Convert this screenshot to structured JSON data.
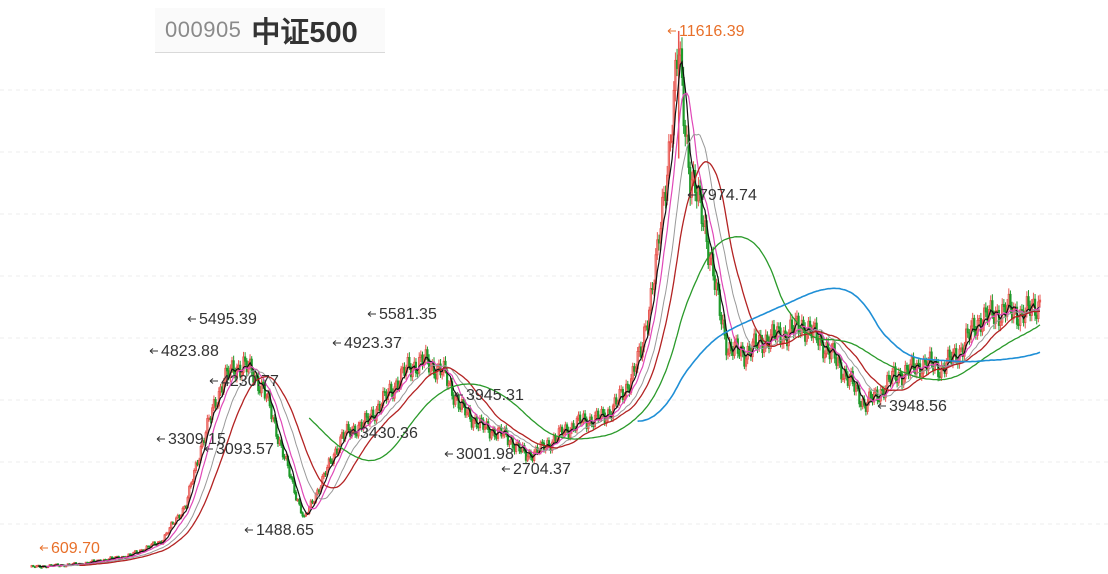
{
  "header": {
    "code": "000905",
    "name": "中证500"
  },
  "chart_data": {
    "type": "candlestick",
    "title": "000905 中证500",
    "xlabel": "",
    "ylabel": "",
    "ylim": [
      600,
      11800
    ],
    "grid": "horizontal dashed",
    "colors": {
      "up": "#e8554f",
      "down": "#1e9a2a",
      "ma_fast": "#111111",
      "ma_pink": "#e048b8",
      "ma_red": "#b32323",
      "ma_gray": "#999999",
      "ma_green": "#2a9a2a",
      "ma_blue": "#1f8fd6",
      "peak_label": "#e8702a",
      "label": "#333333"
    },
    "annotations": [
      {
        "text": "11616.39",
        "value": 11616.39,
        "kind": "peak"
      },
      {
        "text": "7974.74",
        "value": 7974.74,
        "kind": "high"
      },
      {
        "text": "5495.39",
        "value": 5495.39,
        "kind": "high"
      },
      {
        "text": "5581.35",
        "value": 5581.35,
        "kind": "high"
      },
      {
        "text": "4230.77",
        "value": 4230.77,
        "kind": "level"
      },
      {
        "text": "3945.31",
        "value": 3945.31,
        "kind": "level"
      },
      {
        "text": "3948.56",
        "value": 3948.56,
        "kind": "low"
      },
      {
        "text": "3430.36",
        "value": 3430.36,
        "kind": "level"
      },
      {
        "text": "3001.98",
        "value": 3001.98,
        "kind": "low"
      },
      {
        "text": "2704.37",
        "value": 2704.37,
        "kind": "low"
      },
      {
        "text": "1488.65",
        "value": 1488.65,
        "kind": "low"
      },
      {
        "text": "4823.88",
        "value": 4823.88,
        "kind": "level"
      },
      {
        "text": "4923.37",
        "value": 4923.37,
        "kind": "level"
      },
      {
        "text": "3309.15",
        "value": 3309.15,
        "kind": "level"
      },
      {
        "text": "3093.57",
        "value": 3093.57,
        "kind": "level"
      },
      {
        "text": "609.70",
        "value": 609.7,
        "kind": "start"
      }
    ],
    "waypoints": [
      [
        0,
        620
      ],
      [
        30,
        680
      ],
      [
        60,
        850
      ],
      [
        80,
        1150
      ],
      [
        95,
        1900
      ],
      [
        105,
        3200
      ],
      [
        118,
        4500
      ],
      [
        130,
        4800
      ],
      [
        142,
        4300
      ],
      [
        152,
        3200
      ],
      [
        160,
        2300
      ],
      [
        167,
        1600
      ],
      [
        178,
        2400
      ],
      [
        190,
        3300
      ],
      [
        205,
        3600
      ],
      [
        220,
        4250
      ],
      [
        230,
        4700
      ],
      [
        240,
        4850
      ],
      [
        252,
        4600
      ],
      [
        262,
        3900
      ],
      [
        275,
        3500
      ],
      [
        290,
        3300
      ],
      [
        302,
        2900
      ],
      [
        312,
        3050
      ],
      [
        325,
        3400
      ],
      [
        335,
        3600
      ],
      [
        350,
        3700
      ],
      [
        362,
        4200
      ],
      [
        372,
        5000
      ],
      [
        382,
        7000
      ],
      [
        390,
        9500
      ],
      [
        395,
        11200
      ],
      [
        402,
        8600
      ],
      [
        410,
        7800
      ],
      [
        418,
        6200
      ],
      [
        425,
        5100
      ],
      [
        435,
        5000
      ],
      [
        448,
        5300
      ],
      [
        460,
        5400
      ],
      [
        470,
        5600
      ],
      [
        480,
        5300
      ],
      [
        490,
        4900
      ],
      [
        500,
        4400
      ],
      [
        508,
        3960
      ],
      [
        515,
        4100
      ],
      [
        525,
        4500
      ],
      [
        535,
        4650
      ],
      [
        545,
        4800
      ],
      [
        555,
        4700
      ],
      [
        565,
        5000
      ],
      [
        578,
        5700
      ],
      [
        586,
        5800
      ],
      [
        595,
        5900
      ],
      [
        605,
        5800
      ],
      [
        615,
        6050
      ]
    ],
    "index_range": [
      0,
      615
    ]
  }
}
